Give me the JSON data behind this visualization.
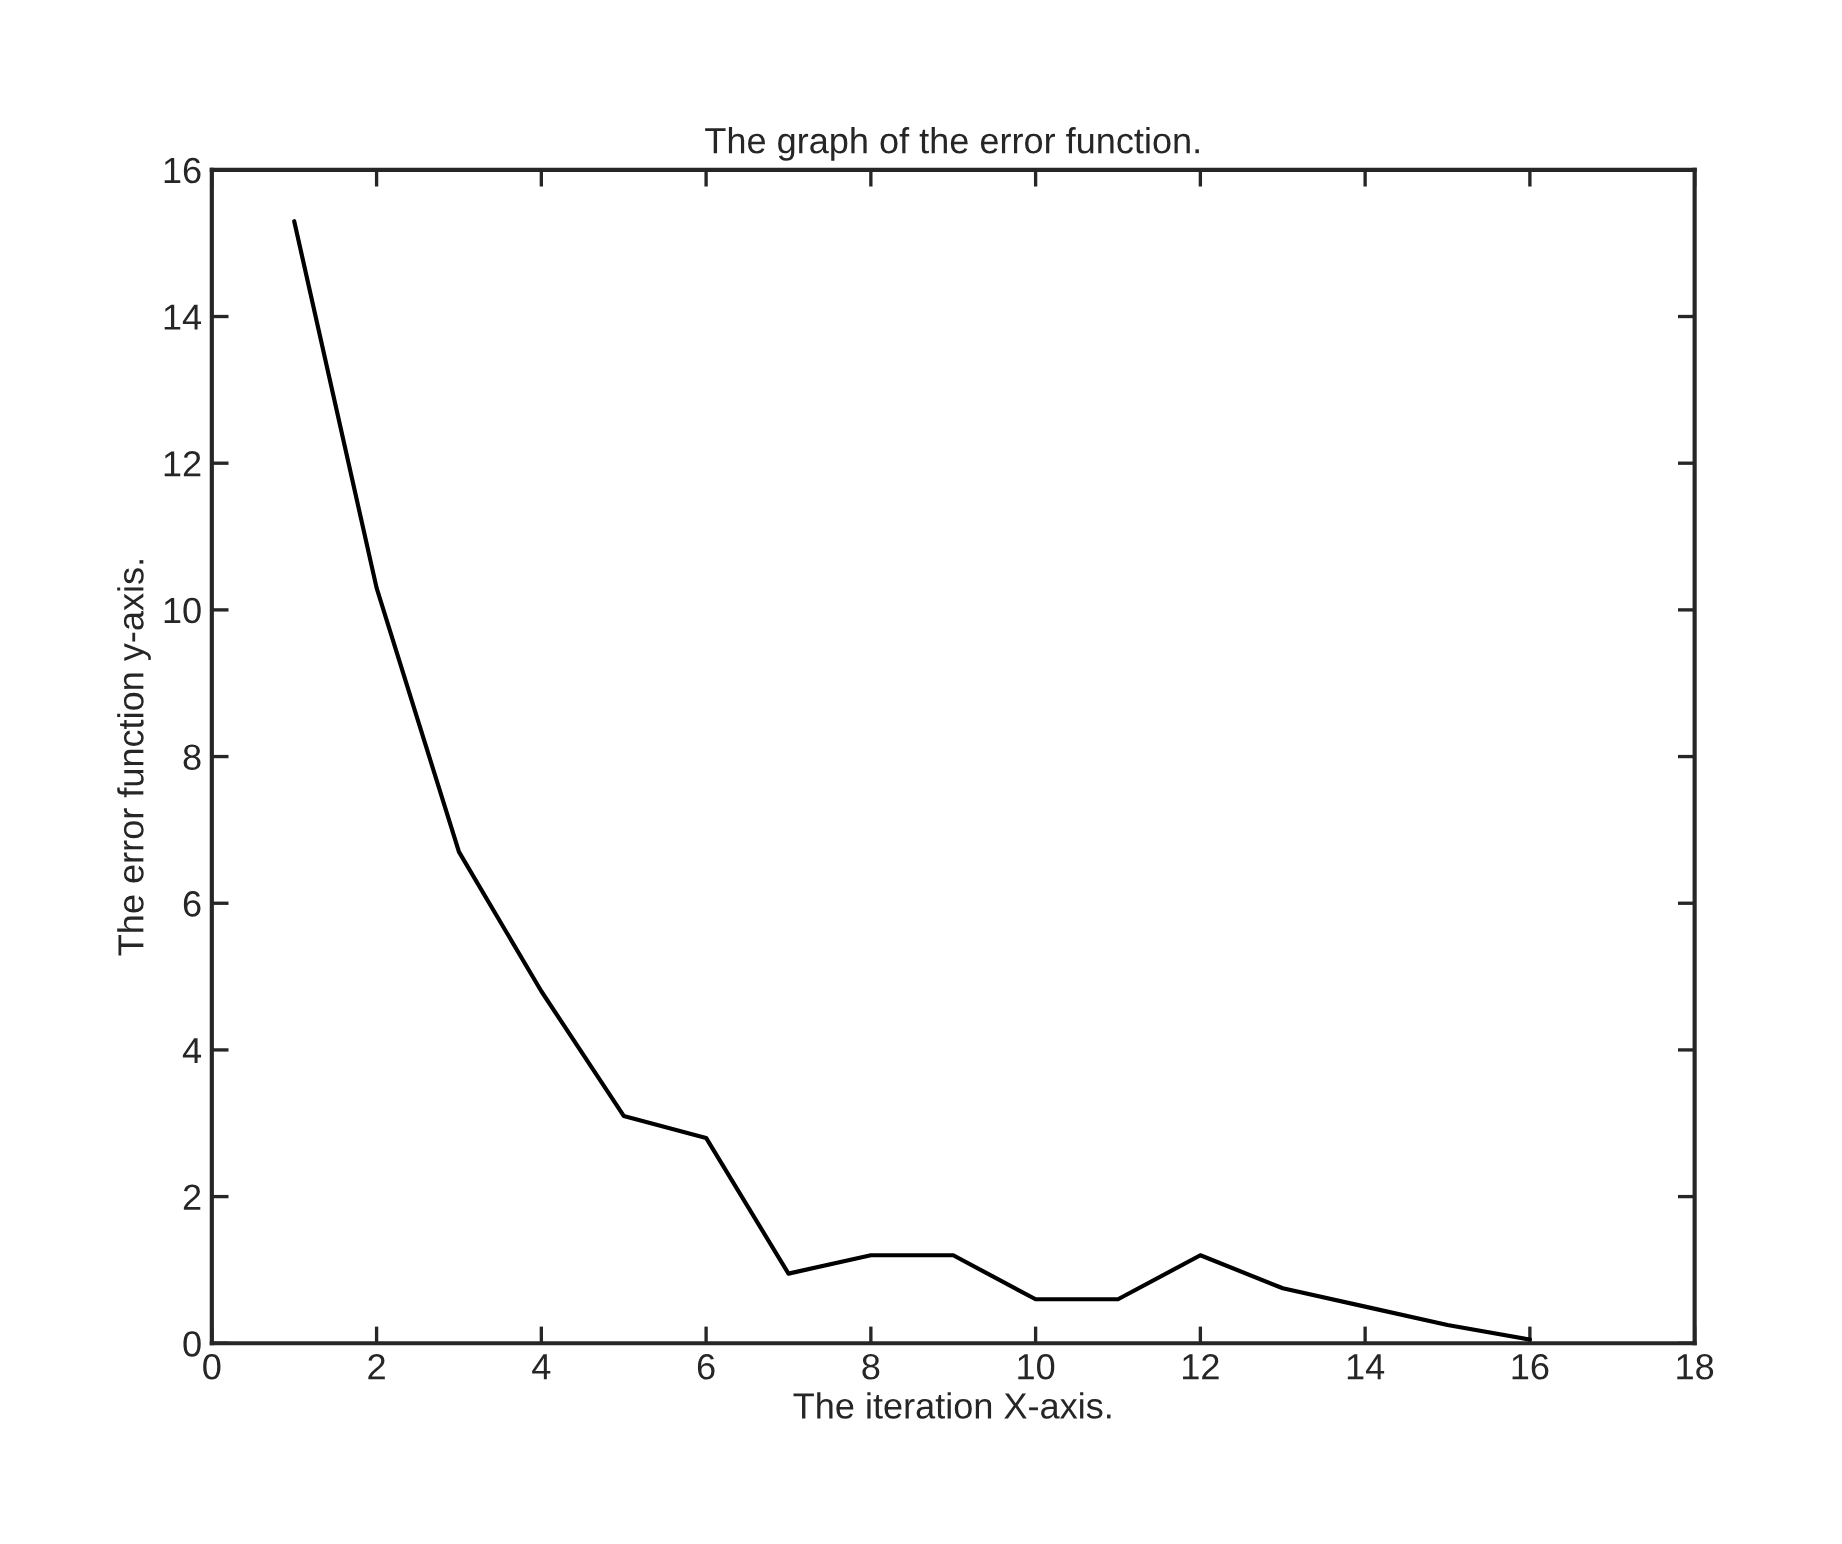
{
  "chart_data": {
    "type": "line",
    "title": "The graph of the error function.",
    "xlabel": "The iteration X-axis.",
    "ylabel": "The error function y-axis.",
    "x": [
      1,
      2,
      3,
      4,
      5,
      6,
      7,
      8,
      9,
      10,
      11,
      12,
      13,
      14,
      15,
      16
    ],
    "series": [
      {
        "color": "#000000",
        "values": [
          15.3,
          10.3,
          6.7,
          4.8,
          3.1,
          2.8,
          0.95,
          1.2,
          1.2,
          0.6,
          0.6,
          1.2,
          0.75,
          0.5,
          0.25,
          0.05
        ]
      }
    ],
    "xlim": [
      0,
      18
    ],
    "xticks": [
      0,
      2,
      4,
      6,
      8,
      10,
      12,
      14,
      16,
      18
    ],
    "ylim": [
      0,
      16
    ],
    "yticks": [
      0,
      2,
      4,
      6,
      8,
      10,
      12,
      14,
      16
    ],
    "grid": false,
    "marker": "none",
    "line_style": "solid"
  }
}
